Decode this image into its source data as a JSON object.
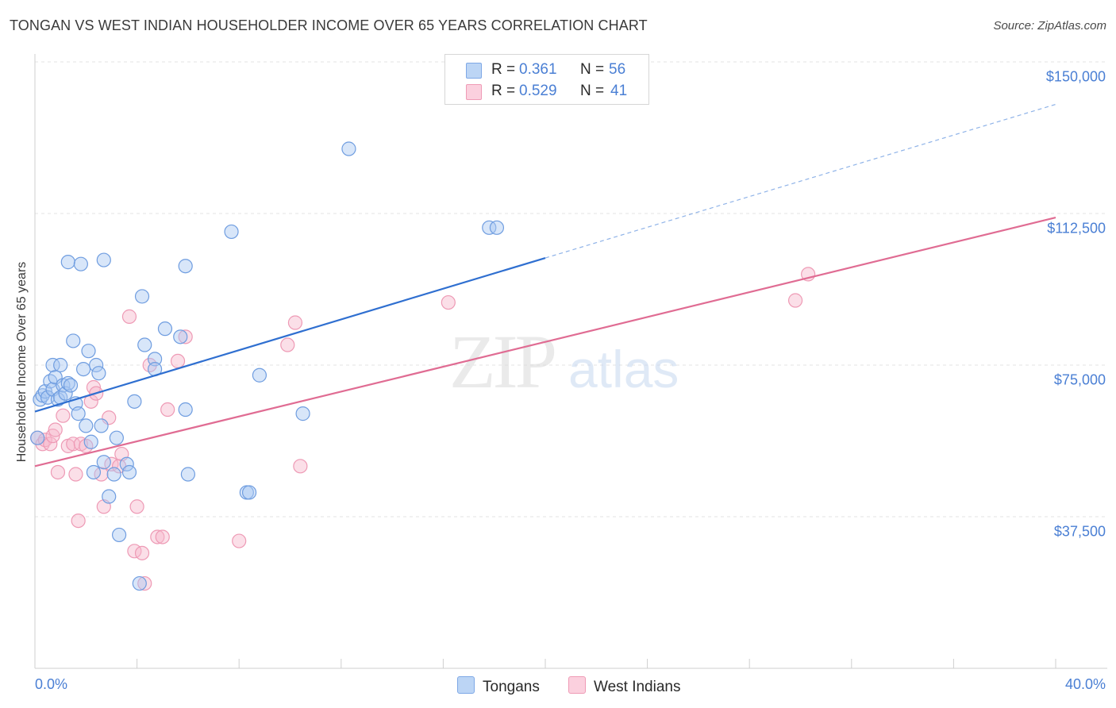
{
  "header": {
    "title": "TONGAN VS WEST INDIAN HOUSEHOLDER INCOME OVER 65 YEARS CORRELATION CHART",
    "source": "Source: ZipAtlas.com"
  },
  "watermark": {
    "zip": "ZIP",
    "atlas": "atlas"
  },
  "legend": {
    "rows": [
      {
        "r_label": "R =",
        "r_value": "0.361",
        "n_label": "N =",
        "n_value": "56",
        "color": "#a9c8f2"
      },
      {
        "r_label": "R =",
        "r_value": "0.529",
        "n_label": "N =",
        "n_value": "41",
        "color": "#f6b8cb"
      }
    ]
  },
  "bottom_legend": {
    "tongans": "Tongans",
    "west_indians": "West Indians"
  },
  "chart_data": {
    "type": "scatter",
    "title": "TONGAN VS WEST INDIAN HOUSEHOLDER INCOME OVER 65 YEARS CORRELATION CHART",
    "xlabel": "",
    "ylabel": "Householder Income Over 65 years",
    "xlim": [
      0,
      40
    ],
    "ylim": [
      0,
      152000
    ],
    "x_tick_labels": [
      "0.0%",
      "40.0%"
    ],
    "y_ticks": [
      37500,
      75000,
      112500,
      150000
    ],
    "y_tick_labels": [
      "$37,500",
      "$75,000",
      "$112,500",
      "$150,000"
    ],
    "grid": true,
    "legend_position": "top-center",
    "colors": {
      "tongans": "#4a7fd4",
      "tongans_fill": "#a9c8f2",
      "west_indians": "#e06c93",
      "west_indians_fill": "#f6b8cb"
    },
    "series": [
      {
        "name": "Tongans",
        "points": [
          [
            0.2,
            66500
          ],
          [
            0.3,
            67500
          ],
          [
            0.4,
            68500
          ],
          [
            0.5,
            67000
          ],
          [
            0.6,
            71000
          ],
          [
            0.7,
            69000
          ],
          [
            0.7,
            75000
          ],
          [
            0.8,
            72000
          ],
          [
            0.9,
            66500
          ],
          [
            1.0,
            75000
          ],
          [
            1.0,
            67000
          ],
          [
            1.1,
            70000
          ],
          [
            1.2,
            68000
          ],
          [
            1.3,
            70500
          ],
          [
            1.4,
            70000
          ],
          [
            1.5,
            81000
          ],
          [
            1.6,
            65500
          ],
          [
            1.7,
            63000
          ],
          [
            1.9,
            74000
          ],
          [
            2.0,
            60000
          ],
          [
            2.1,
            78500
          ],
          [
            2.2,
            56000
          ],
          [
            2.3,
            48500
          ],
          [
            2.4,
            75000
          ],
          [
            2.5,
            73000
          ],
          [
            2.6,
            60000
          ],
          [
            2.7,
            51000
          ],
          [
            2.9,
            42500
          ],
          [
            3.1,
            48000
          ],
          [
            3.2,
            57000
          ],
          [
            3.3,
            33000
          ],
          [
            3.6,
            50500
          ],
          [
            3.7,
            48500
          ],
          [
            3.9,
            66000
          ],
          [
            4.2,
            92000
          ],
          [
            4.3,
            80000
          ],
          [
            4.7,
            76500
          ],
          [
            4.7,
            74000
          ],
          [
            5.1,
            84000
          ],
          [
            5.7,
            82000
          ],
          [
            5.9,
            64000
          ],
          [
            6.0,
            48000
          ],
          [
            5.9,
            99500
          ],
          [
            4.1,
            21000
          ],
          [
            1.3,
            100500
          ],
          [
            1.8,
            100000
          ],
          [
            2.7,
            101000
          ],
          [
            7.7,
            108000
          ],
          [
            8.3,
            43500
          ],
          [
            8.4,
            43500
          ],
          [
            8.8,
            72500
          ],
          [
            10.5,
            63000
          ],
          [
            12.3,
            128500
          ],
          [
            17.8,
            109000
          ],
          [
            18.1,
            109000
          ],
          [
            0.1,
            57000
          ]
        ]
      },
      {
        "name": "West Indians",
        "points": [
          [
            0.1,
            57000
          ],
          [
            0.3,
            55500
          ],
          [
            0.4,
            56500
          ],
          [
            0.6,
            55500
          ],
          [
            0.7,
            57500
          ],
          [
            0.8,
            59000
          ],
          [
            0.9,
            48500
          ],
          [
            1.1,
            62500
          ],
          [
            1.3,
            55000
          ],
          [
            1.5,
            55500
          ],
          [
            1.6,
            48000
          ],
          [
            1.7,
            36500
          ],
          [
            1.8,
            55500
          ],
          [
            2.0,
            55000
          ],
          [
            2.2,
            66000
          ],
          [
            2.3,
            69500
          ],
          [
            2.4,
            68000
          ],
          [
            2.6,
            48000
          ],
          [
            2.7,
            40000
          ],
          [
            2.9,
            62000
          ],
          [
            3.0,
            50500
          ],
          [
            3.3,
            50000
          ],
          [
            3.4,
            53000
          ],
          [
            3.7,
            87000
          ],
          [
            3.9,
            29000
          ],
          [
            4.0,
            40000
          ],
          [
            4.2,
            28500
          ],
          [
            4.5,
            75000
          ],
          [
            4.8,
            32500
          ],
          [
            5.0,
            32500
          ],
          [
            5.2,
            64000
          ],
          [
            5.6,
            76000
          ],
          [
            5.9,
            82000
          ],
          [
            4.3,
            21000
          ],
          [
            8.0,
            31500
          ],
          [
            9.9,
            80000
          ],
          [
            10.2,
            85500
          ],
          [
            10.4,
            50000
          ],
          [
            16.2,
            90500
          ],
          [
            29.8,
            91000
          ],
          [
            30.3,
            97500
          ]
        ]
      }
    ],
    "trendlines": [
      {
        "name": "Tongans",
        "solid_x": [
          0,
          20
        ],
        "dashed_x": [
          20,
          40
        ],
        "y_at_0": 63500,
        "y_at_40": 139500
      },
      {
        "name": "West Indians",
        "x": [
          0,
          40
        ],
        "y_at_0": 50000,
        "y_at_40": 111500
      }
    ]
  }
}
